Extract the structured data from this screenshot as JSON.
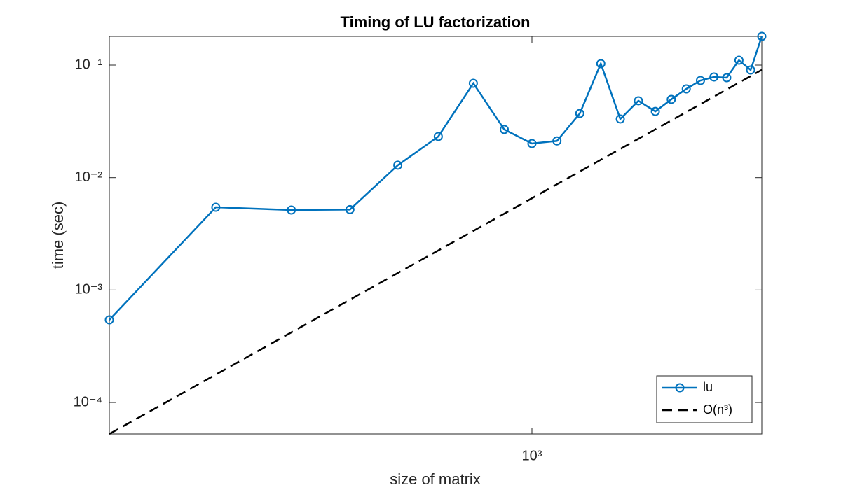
{
  "chart_data": {
    "type": "line",
    "title": "Timing of LU factorization",
    "x_label": "size of matrix",
    "y_label": "time (sec)",
    "x": [
      200,
      300,
      400,
      500,
      600,
      700,
      800,
      900,
      1000,
      1100,
      1200,
      1300,
      1400,
      1500,
      1600,
      1700,
      1800,
      1900,
      2000,
      2100,
      2200,
      2300,
      2400
    ],
    "series": [
      {
        "name": "lu",
        "color": "#0072bd",
        "style": "solid",
        "marker": "circle",
        "values": [
          0.000543,
          0.00545,
          0.00515,
          0.0052,
          0.0129,
          0.0232,
          0.0689,
          0.0268,
          0.0201,
          0.0212,
          0.0372,
          0.103,
          0.0332,
          0.0482,
          0.0388,
          0.0496,
          0.0614,
          0.073,
          0.0784,
          0.0773,
          0.1105,
          0.0905,
          0.18
        ]
      },
      {
        "name": "O(n³)",
        "color": "#000000",
        "style": "dashed",
        "marker": "none",
        "values": [
          5.25e-05,
          0.000177,
          0.00042,
          0.00082,
          0.001417,
          0.00225,
          0.00336,
          0.00478,
          0.00656,
          0.00873,
          0.01134,
          0.01441,
          0.018,
          0.02214,
          0.02687,
          0.03223,
          0.03826,
          0.045,
          0.0525,
          0.06075,
          0.06985,
          0.0798,
          0.0907
        ]
      }
    ],
    "xlim": [
      200,
      2400
    ],
    "ylim": [
      5.25e-05,
      0.18
    ],
    "xscale": "log",
    "yscale": "log",
    "xticks": [
      {
        "value": 1000,
        "label": "10³"
      }
    ],
    "yticks": [
      {
        "value": 0.0001,
        "label": "10⁻⁴"
      },
      {
        "value": 0.001,
        "label": "10⁻³"
      },
      {
        "value": 0.01,
        "label": "10⁻²"
      },
      {
        "value": 0.1,
        "label": "10⁻¹"
      }
    ],
    "grid": false,
    "legend": "lower right"
  }
}
